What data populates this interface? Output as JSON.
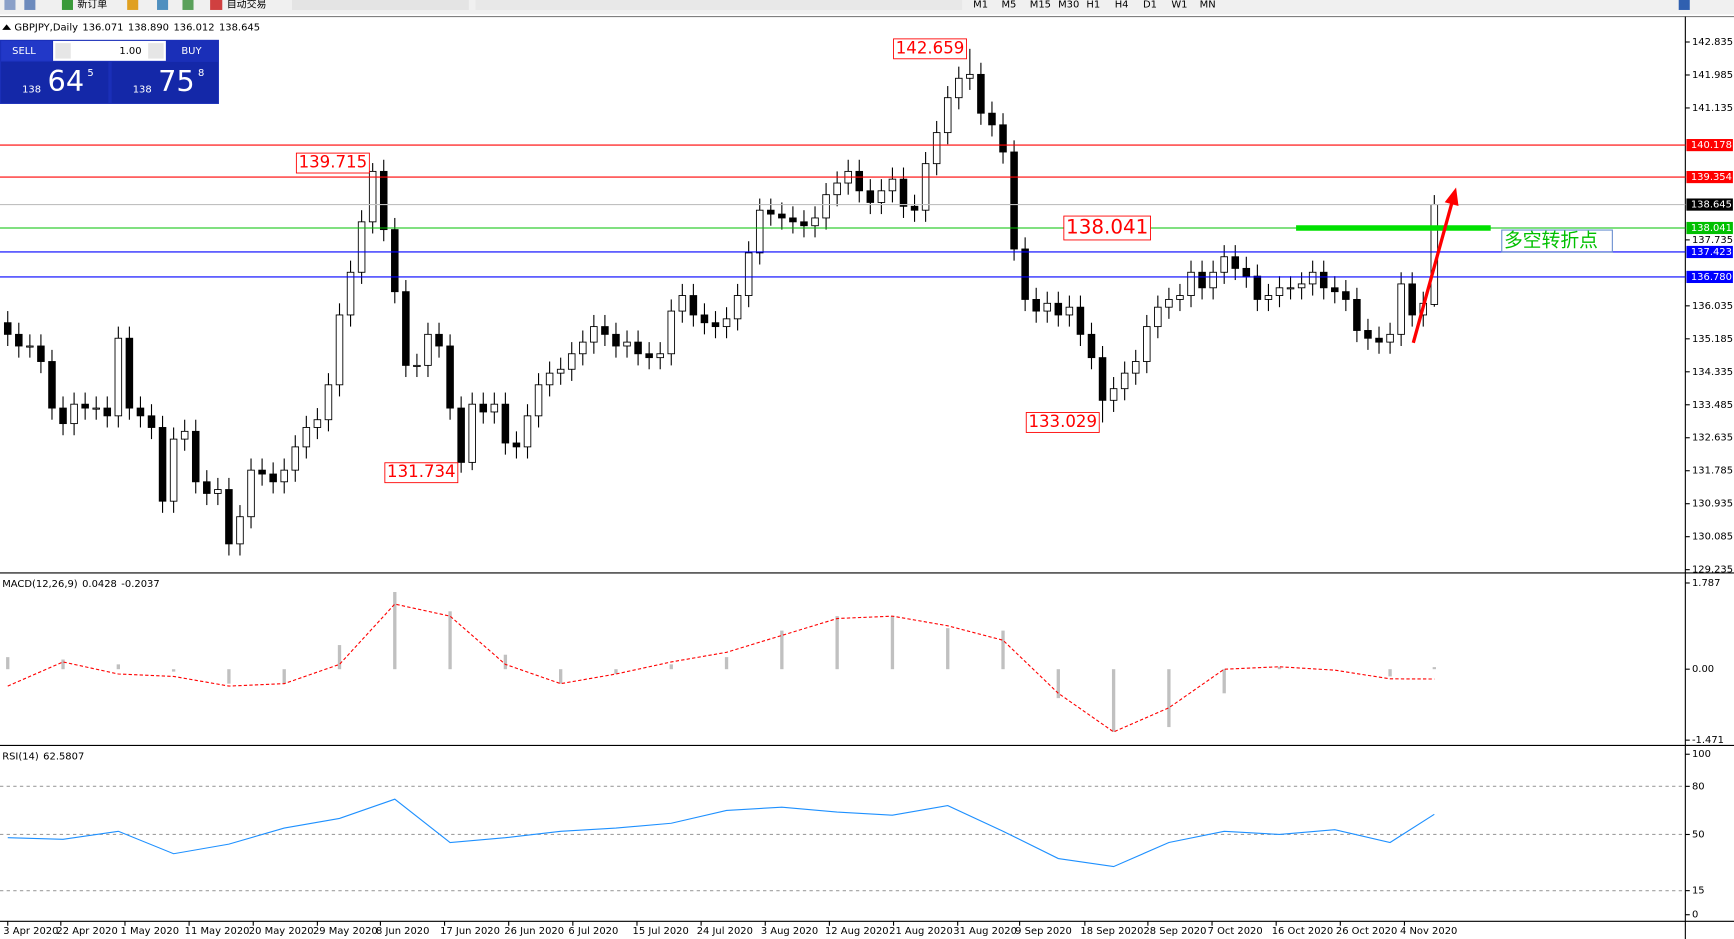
{
  "toolbar": {
    "new_order": "新订单",
    "auto_trading": "自动交易",
    "timeframes": [
      "M1",
      "M5",
      "M15",
      "M30",
      "H1",
      "H4",
      "D1",
      "W1",
      "MN"
    ]
  },
  "trade_panel": {
    "sell": "SELL",
    "buy": "BUY",
    "lots": "1.00",
    "bid_prefix": "138",
    "bid_big": "64",
    "bid_small": "5",
    "ask_prefix": "138",
    "ask_big": "75",
    "ask_small": "8"
  },
  "chart_data": [
    {
      "type": "candlestick",
      "title": "GBPJPY,Daily",
      "quote": [
        "136.071",
        "138.890",
        "136.012",
        "138.645"
      ],
      "bull_color": "#ffffff",
      "bear_color": "#000000",
      "ohlc": [
        [
          135.6,
          135.9,
          135.0,
          135.3
        ],
        [
          135.3,
          135.6,
          134.7,
          135.0
        ],
        [
          135.0,
          135.3,
          134.7,
          135.0
        ],
        [
          135.0,
          135.3,
          134.3,
          134.6
        ],
        [
          134.6,
          134.9,
          133.1,
          133.4
        ],
        [
          133.4,
          133.7,
          132.7,
          133.0
        ],
        [
          133.0,
          133.8,
          132.7,
          133.5
        ],
        [
          133.5,
          133.8,
          133.1,
          133.4
        ],
        [
          133.4,
          133.7,
          133.1,
          133.4
        ],
        [
          133.4,
          133.7,
          132.9,
          133.2
        ],
        [
          133.2,
          135.5,
          132.9,
          135.2
        ],
        [
          135.2,
          135.5,
          133.1,
          133.4
        ],
        [
          133.4,
          133.7,
          132.9,
          133.2
        ],
        [
          133.2,
          133.5,
          132.6,
          132.9
        ],
        [
          132.9,
          133.2,
          130.7,
          131.0
        ],
        [
          131.0,
          132.9,
          130.7,
          132.6
        ],
        [
          132.6,
          133.1,
          132.3,
          132.8
        ],
        [
          132.8,
          133.1,
          131.2,
          131.5
        ],
        [
          131.5,
          131.8,
          130.9,
          131.2
        ],
        [
          131.2,
          131.6,
          130.9,
          131.3
        ],
        [
          131.3,
          131.6,
          129.6,
          129.9
        ],
        [
          129.9,
          130.9,
          129.6,
          130.6
        ],
        [
          130.6,
          132.1,
          130.3,
          131.8
        ],
        [
          131.8,
          132.1,
          131.4,
          131.7
        ],
        [
          131.7,
          132.0,
          131.2,
          131.5
        ],
        [
          131.5,
          132.1,
          131.2,
          131.8
        ],
        [
          131.8,
          132.7,
          131.5,
          132.4
        ],
        [
          132.4,
          133.2,
          132.1,
          132.9
        ],
        [
          132.9,
          133.4,
          132.6,
          133.1
        ],
        [
          133.1,
          134.3,
          132.8,
          134.0
        ],
        [
          134.0,
          136.1,
          133.7,
          135.8
        ],
        [
          135.8,
          137.2,
          135.5,
          136.9
        ],
        [
          136.9,
          138.5,
          136.6,
          138.2
        ],
        [
          138.2,
          139.715,
          137.9,
          139.5
        ],
        [
          139.5,
          139.8,
          137.7,
          138.0
        ],
        [
          138.0,
          138.3,
          136.1,
          136.4
        ],
        [
          136.4,
          136.7,
          134.2,
          134.5
        ],
        [
          134.5,
          134.8,
          134.2,
          134.5
        ],
        [
          134.5,
          135.6,
          134.2,
          135.3
        ],
        [
          135.3,
          135.6,
          134.7,
          135.0
        ],
        [
          135.0,
          135.3,
          133.1,
          133.4
        ],
        [
          133.4,
          133.7,
          131.734,
          132.0
        ],
        [
          132.0,
          133.8,
          131.8,
          133.5
        ],
        [
          133.5,
          133.8,
          133.0,
          133.3
        ],
        [
          133.3,
          133.8,
          133.0,
          133.5
        ],
        [
          133.5,
          133.8,
          132.2,
          132.5
        ],
        [
          132.5,
          132.8,
          132.1,
          132.4
        ],
        [
          132.4,
          133.5,
          132.1,
          133.2
        ],
        [
          133.2,
          134.3,
          132.9,
          134.0
        ],
        [
          134.0,
          134.6,
          133.7,
          134.3
        ],
        [
          134.3,
          134.7,
          134.0,
          134.4
        ],
        [
          134.4,
          135.1,
          134.1,
          134.8
        ],
        [
          134.8,
          135.4,
          134.5,
          135.1
        ],
        [
          135.1,
          135.8,
          134.8,
          135.5
        ],
        [
          135.5,
          135.8,
          135.0,
          135.3
        ],
        [
          135.3,
          135.6,
          134.7,
          135.0
        ],
        [
          135.0,
          135.4,
          134.7,
          135.1
        ],
        [
          135.1,
          135.4,
          134.5,
          134.8
        ],
        [
          134.8,
          135.1,
          134.4,
          134.7
        ],
        [
          134.7,
          135.1,
          134.4,
          134.8
        ],
        [
          134.8,
          136.2,
          134.5,
          135.9
        ],
        [
          135.9,
          136.6,
          135.6,
          136.3
        ],
        [
          136.3,
          136.6,
          135.5,
          135.8
        ],
        [
          135.8,
          136.1,
          135.3,
          135.6
        ],
        [
          135.6,
          135.9,
          135.2,
          135.5
        ],
        [
          135.5,
          136.0,
          135.2,
          135.7
        ],
        [
          135.7,
          136.6,
          135.4,
          136.3
        ],
        [
          136.3,
          137.7,
          136.0,
          137.4
        ],
        [
          137.4,
          138.8,
          137.1,
          138.5
        ],
        [
          138.5,
          138.8,
          138.1,
          138.4
        ],
        [
          138.4,
          138.7,
          138.0,
          138.3
        ],
        [
          138.3,
          138.6,
          137.9,
          138.2
        ],
        [
          138.2,
          138.5,
          137.8,
          138.1
        ],
        [
          138.1,
          138.6,
          137.8,
          138.3
        ],
        [
          138.3,
          139.2,
          138.0,
          138.9
        ],
        [
          138.9,
          139.5,
          138.6,
          139.2
        ],
        [
          139.2,
          139.8,
          138.9,
          139.5
        ],
        [
          139.5,
          139.8,
          138.7,
          139.0
        ],
        [
          139.0,
          139.3,
          138.4,
          138.7
        ],
        [
          138.7,
          139.3,
          138.4,
          139.0
        ],
        [
          139.0,
          139.6,
          138.7,
          139.3
        ],
        [
          139.3,
          139.6,
          138.3,
          138.6
        ],
        [
          138.6,
          138.9,
          138.2,
          138.5
        ],
        [
          138.5,
          140.0,
          138.2,
          139.7
        ],
        [
          139.7,
          140.8,
          139.4,
          140.5
        ],
        [
          140.5,
          141.7,
          140.2,
          141.4
        ],
        [
          141.4,
          142.2,
          141.1,
          141.9
        ],
        [
          141.9,
          142.659,
          141.6,
          142.0
        ],
        [
          142.0,
          142.3,
          140.7,
          141.0
        ],
        [
          141.0,
          141.3,
          140.4,
          140.7
        ],
        [
          140.7,
          141.0,
          139.7,
          140.0
        ],
        [
          140.0,
          140.3,
          137.2,
          137.5
        ],
        [
          137.5,
          137.8,
          135.9,
          136.2
        ],
        [
          136.2,
          136.5,
          135.6,
          135.9
        ],
        [
          135.9,
          136.4,
          135.6,
          136.1
        ],
        [
          136.1,
          136.4,
          135.5,
          135.8
        ],
        [
          135.8,
          136.3,
          135.5,
          136.0
        ],
        [
          136.0,
          136.3,
          135.0,
          135.3
        ],
        [
          135.3,
          135.6,
          134.4,
          134.7
        ],
        [
          134.7,
          135.0,
          133.029,
          133.6
        ],
        [
          133.6,
          134.2,
          133.3,
          133.9
        ],
        [
          133.9,
          134.6,
          133.6,
          134.3
        ],
        [
          134.3,
          134.9,
          134.0,
          134.6
        ],
        [
          134.6,
          135.8,
          134.3,
          135.5
        ],
        [
          135.5,
          136.3,
          135.2,
          136.0
        ],
        [
          136.0,
          136.5,
          135.7,
          136.2
        ],
        [
          136.2,
          136.6,
          135.9,
          136.3
        ],
        [
          136.3,
          137.2,
          136.0,
          136.9
        ],
        [
          136.9,
          137.2,
          136.2,
          136.5
        ],
        [
          136.5,
          137.2,
          136.2,
          136.9
        ],
        [
          136.9,
          137.6,
          136.6,
          137.3
        ],
        [
          137.3,
          137.6,
          136.7,
          137.0
        ],
        [
          137.0,
          137.3,
          136.5,
          136.8
        ],
        [
          136.8,
          137.1,
          135.9,
          136.2
        ],
        [
          136.2,
          136.6,
          135.9,
          136.3
        ],
        [
          136.3,
          136.8,
          136.0,
          136.5
        ],
        [
          136.5,
          136.8,
          136.2,
          136.5
        ],
        [
          136.5,
          136.9,
          136.2,
          136.6
        ],
        [
          136.6,
          137.2,
          136.3,
          136.9
        ],
        [
          136.9,
          137.2,
          136.2,
          136.5
        ],
        [
          136.5,
          136.8,
          136.1,
          136.4
        ],
        [
          136.4,
          136.7,
          135.9,
          136.2
        ],
        [
          136.2,
          136.5,
          135.1,
          135.4
        ],
        [
          135.4,
          135.7,
          134.9,
          135.2
        ],
        [
          135.2,
          135.5,
          134.8,
          135.1
        ],
        [
          135.1,
          135.6,
          134.8,
          135.3
        ],
        [
          135.3,
          136.9,
          135.0,
          136.6
        ],
        [
          136.6,
          136.9,
          135.5,
          135.8
        ],
        [
          135.8,
          136.4,
          135.5,
          136.1
        ],
        [
          136.071,
          138.89,
          136.012,
          138.645
        ]
      ],
      "xlim": [
        -0.7,
        151.7
      ],
      "xticks": [
        {
          "value": 0,
          "label": "3 Apr 2020"
        },
        {
          "value": 4.8,
          "label": "22 Apr 2020"
        },
        {
          "value": 10.6,
          "label": "1 May 2020"
        },
        {
          "value": 16.4,
          "label": "11 May 2020"
        },
        {
          "value": 22.2,
          "label": "20 May 2020"
        },
        {
          "value": 28,
          "label": "29 May 2020"
        },
        {
          "value": 33.7,
          "label": "8 Jun 2020"
        },
        {
          "value": 39.5,
          "label": "17 Jun 2020"
        },
        {
          "value": 45.3,
          "label": "26 Jun 2020"
        },
        {
          "value": 51.1,
          "label": "6 Jul 2020"
        },
        {
          "value": 56.9,
          "label": "15 Jul 2020"
        },
        {
          "value": 62.7,
          "label": "24 Jul 2020"
        },
        {
          "value": 68.5,
          "label": "3 Aug 2020"
        },
        {
          "value": 74.3,
          "label": "12 Aug 2020"
        },
        {
          "value": 80.1,
          "label": "21 Aug 2020"
        },
        {
          "value": 85.9,
          "label": "31 Aug 2020"
        },
        {
          "value": 91.5,
          "label": "9 Sep 2020"
        },
        {
          "value": 97.4,
          "label": "18 Sep 2020"
        },
        {
          "value": 103.1,
          "label": "28 Sep 2020"
        },
        {
          "value": 108.9,
          "label": "7 Oct 2020"
        },
        {
          "value": 114.7,
          "label": "16 Oct 2020"
        },
        {
          "value": 120.5,
          "label": "26 Oct 2020"
        },
        {
          "value": 126.3,
          "label": "4 Nov 2020"
        }
      ],
      "ylim": [
        129.18,
        143.49
      ],
      "yticks": [
        142.835,
        141.985,
        141.135,
        137.735,
        136.035,
        135.185,
        134.335,
        133.485,
        132.635,
        131.785,
        130.935,
        130.085,
        129.235
      ],
      "hlines": [
        {
          "value": 140.178,
          "color": "#ff0000"
        },
        {
          "value": 139.354,
          "color": "#ff0000"
        },
        {
          "value": 138.645,
          "color": "#c0c0c0",
          "label_color": "#000000"
        },
        {
          "value": 138.041,
          "color": "#00c000"
        },
        {
          "value": 137.423,
          "color": "#0000ff"
        },
        {
          "value": 136.78,
          "label": "136.780",
          "color": "#0000ff"
        }
      ],
      "annotation": "多空转折点"
    },
    {
      "type": "macd",
      "title": "MACD(12,26,9)",
      "x": [
        0,
        5,
        10,
        15,
        20,
        25,
        30,
        35,
        40,
        45,
        50,
        55,
        60,
        65,
        70,
        75,
        80,
        85,
        90,
        95,
        100,
        105,
        110,
        115,
        120,
        125,
        129
      ],
      "histogram": [
        0.25,
        0.2,
        0.1,
        -0.05,
        -0.3,
        -0.3,
        0.5,
        1.6,
        1.2,
        0.3,
        -0.3,
        -0.1,
        0.1,
        0.25,
        0.8,
        1.1,
        1.1,
        0.85,
        0.8,
        -0.6,
        -1.3,
        -1.2,
        -0.5,
        0.05,
        0.0,
        -0.15,
        0.0428
      ],
      "signal": [
        -0.35,
        0.15,
        -0.1,
        -0.15,
        -0.35,
        -0.3,
        0.1,
        1.35,
        1.1,
        0.1,
        -0.3,
        -0.1,
        0.15,
        0.35,
        0.7,
        1.05,
        1.1,
        0.9,
        0.6,
        -0.5,
        -1.3,
        -0.8,
        0.0,
        0.05,
        -0.02,
        -0.2,
        -0.2037
      ],
      "histogram_color": "#c0c0c0",
      "signal_color": "#ff0000",
      "ylim": [
        -1.558,
        1.95
      ],
      "yticks": [
        1.787,
        {
          "value": 0,
          "label": "0.00"
        },
        -1.471
      ]
    },
    {
      "type": "line",
      "title": "RSI(14)",
      "x": [
        0,
        5,
        10,
        15,
        20,
        25,
        30,
        35,
        40,
        45,
        50,
        55,
        60,
        65,
        70,
        75,
        80,
        85,
        90,
        95,
        100,
        105,
        110,
        115,
        120,
        125,
        129
      ],
      "values": [
        48,
        47,
        52,
        38,
        44,
        54,
        60,
        72,
        45,
        48,
        52,
        54,
        57,
        65,
        67,
        64,
        62,
        68,
        52,
        35,
        30,
        45,
        52,
        50,
        53,
        45,
        62.5807
      ],
      "color": "#1e90ff",
      "ylim": [
        -4.1,
        104.1
      ],
      "yticks": [
        100,
        80,
        50,
        15,
        0
      ],
      "levels": [
        80,
        50,
        15
      ]
    }
  ]
}
